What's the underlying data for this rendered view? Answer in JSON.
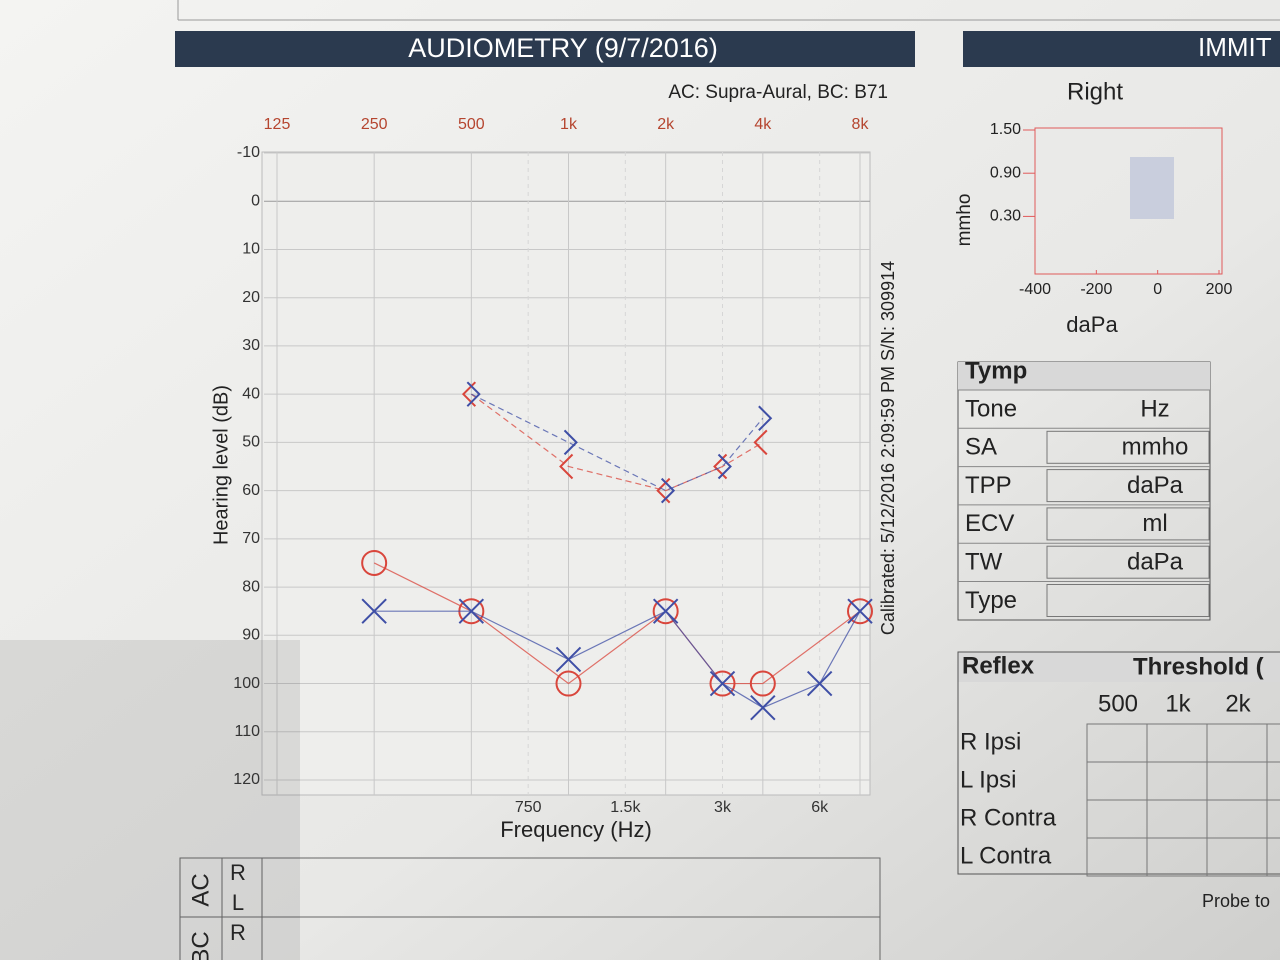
{
  "chart_data": {
    "type": "audiogram",
    "title": "AUDIOMETRY  (9/7/2016)",
    "subtitle": "AC: Supra-Aural, BC: B71",
    "y_label": "Hearing level (dB)",
    "x_label": "Frequency (Hz)",
    "side_note": "Calibrated: 5/12/2016 2:09:59 PM  S/N: 309914",
    "log_x": true,
    "grid": true,
    "xlim": [
      125,
      8000
    ],
    "ylim": [
      -10,
      120
    ],
    "xticks": [
      125,
      250,
      500,
      {
        "value": 1000,
        "label": "1k"
      },
      {
        "value": 2000,
        "label": "2k"
      },
      {
        "value": 4000,
        "label": "4k"
      },
      {
        "value": 8000,
        "label": "8k"
      }
    ],
    "xticks_bottom": [
      750,
      {
        "value": 1500,
        "label": "1.5k"
      },
      {
        "value": 3000,
        "label": "3k"
      },
      {
        "value": 6000,
        "label": "6k"
      }
    ],
    "yticks": [
      -10,
      0,
      10,
      20,
      30,
      40,
      50,
      60,
      70,
      80,
      90,
      100,
      110,
      120
    ],
    "series": [
      {
        "marker": "o",
        "color": "#d9463c",
        "line": "solid",
        "x": [
          250,
          500,
          1000,
          2000,
          3000,
          4000,
          8000
        ],
        "values": [
          75,
          85,
          100,
          85,
          100,
          100,
          85
        ]
      },
      {
        "marker": "x",
        "color": "#3f4fa6",
        "line": "solid",
        "x": [
          250,
          500,
          1000,
          2000,
          3000,
          4000,
          6000,
          8000
        ],
        "values": [
          85,
          85,
          95,
          85,
          100,
          105,
          100,
          85
        ]
      },
      {
        "marker": "<",
        "color": "#d9463c",
        "line": "dashed",
        "x": [
          500,
          1000,
          2000,
          3000,
          4000
        ],
        "values": [
          40,
          55,
          60,
          55,
          50
        ]
      },
      {
        "marker": ">",
        "color": "#3f4fa6",
        "line": "dashed",
        "x": [
          500,
          1000,
          2000,
          3000,
          4000
        ],
        "values": [
          40,
          50,
          60,
          55,
          45
        ]
      }
    ]
  },
  "immittance": {
    "header": "IMMIT",
    "ear": "Right",
    "y_label": "mmho",
    "x_label": "daPa",
    "xlim": [
      -400,
      200
    ],
    "ylim": [
      -0.5,
      1.5
    ],
    "xticks": [
      -400,
      -200,
      0,
      200
    ],
    "yticks": [
      {
        "value": 1.5,
        "label": "1.50"
      },
      {
        "value": 0.9,
        "label": "0.90"
      },
      {
        "value": 0.3,
        "label": "0.30"
      }
    ]
  },
  "tymp": {
    "title": "Tymp",
    "rows": [
      [
        "Tone",
        "Hz"
      ],
      [
        "SA",
        "mmho"
      ],
      [
        "TPP",
        "daPa"
      ],
      [
        "ECV",
        "ml"
      ],
      [
        "TW",
        "daPa"
      ],
      [
        "Type"
      ]
    ]
  },
  "reflex": {
    "title": "Reflex",
    "subtitle": "Threshold (",
    "columns": [
      "500",
      "1k",
      "2k"
    ],
    "rows": [
      "R Ipsi",
      "L Ipsi",
      "R Contra",
      "L Contra"
    ],
    "footer": "Probe to"
  },
  "summary": {
    "ac": "AC",
    "bc": "BC",
    "ac_rows": [
      "R",
      "L"
    ],
    "bc_rows": [
      "R"
    ]
  }
}
